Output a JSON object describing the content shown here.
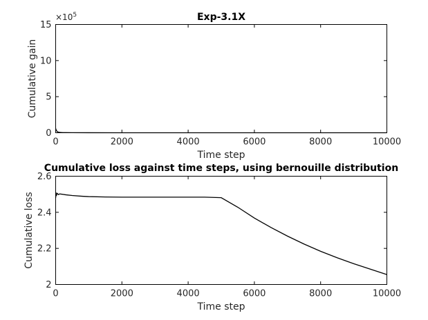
{
  "chart_data": [
    {
      "type": "line",
      "title": "Exp-3.1X",
      "xlabel": "Time step",
      "ylabel": "Cumulative gain",
      "xlim": [
        0,
        10000
      ],
      "ylim": [
        0,
        15
      ],
      "y_multiplier_label": "×10",
      "y_multiplier_exponent": "5",
      "x_ticks": [
        "0",
        "2000",
        "4000",
        "6000",
        "8000",
        "10000"
      ],
      "x_tick_values": [
        0,
        2000,
        4000,
        6000,
        8000,
        10000
      ],
      "y_ticks": [
        "0",
        "5",
        "10",
        "15"
      ],
      "y_tick_values": [
        0,
        5,
        10,
        15
      ],
      "grid": false,
      "series": [
        {
          "color": "#000000",
          "x": [
            0,
            10,
            20,
            40,
            60,
            100,
            150,
            200,
            300,
            500,
            1000,
            2000,
            3000,
            4000,
            5000,
            6000,
            7000,
            8000,
            9000,
            10000
          ],
          "y": [
            0.6,
            0.45,
            0.35,
            0.2,
            0.12,
            0.07,
            0.04,
            0.03,
            0.02,
            0.01,
            0.005,
            0.003,
            0.002,
            0.002,
            0.002,
            0.002,
            0.002,
            0.002,
            0.002,
            0.002
          ]
        }
      ]
    },
    {
      "type": "line",
      "title": "Cumulative loss against time steps, using bernouille distribution",
      "xlabel": "Time step",
      "ylabel": "Cumulative loss",
      "xlim": [
        0,
        10000
      ],
      "ylim": [
        2,
        2.6
      ],
      "x_ticks": [
        "0",
        "2000",
        "4000",
        "6000",
        "8000",
        "10000"
      ],
      "x_tick_values": [
        0,
        2000,
        4000,
        6000,
        8000,
        10000
      ],
      "y_ticks": [
        "2",
        "2.2",
        "2.4",
        "2.6"
      ],
      "y_tick_values": [
        2,
        2.2,
        2.4,
        2.6
      ],
      "grid": false,
      "series": [
        {
          "color": "#000000",
          "x": [
            0,
            10,
            20,
            30,
            50,
            80,
            120,
            200,
            300,
            500,
            800,
            1000,
            1500,
            2000,
            2500,
            3000,
            3500,
            4000,
            4500,
            5000,
            5500,
            6000,
            6500,
            7000,
            7500,
            8000,
            8500,
            9000,
            9500,
            10000
          ],
          "y": [
            2.48,
            2.51,
            2.49,
            2.5,
            2.505,
            2.498,
            2.502,
            2.5,
            2.497,
            2.493,
            2.489,
            2.487,
            2.485,
            2.484,
            2.484,
            2.484,
            2.484,
            2.484,
            2.484,
            2.481,
            2.428,
            2.368,
            2.316,
            2.268,
            2.224,
            2.184,
            2.148,
            2.115,
            2.085,
            2.055
          ]
        }
      ]
    }
  ]
}
